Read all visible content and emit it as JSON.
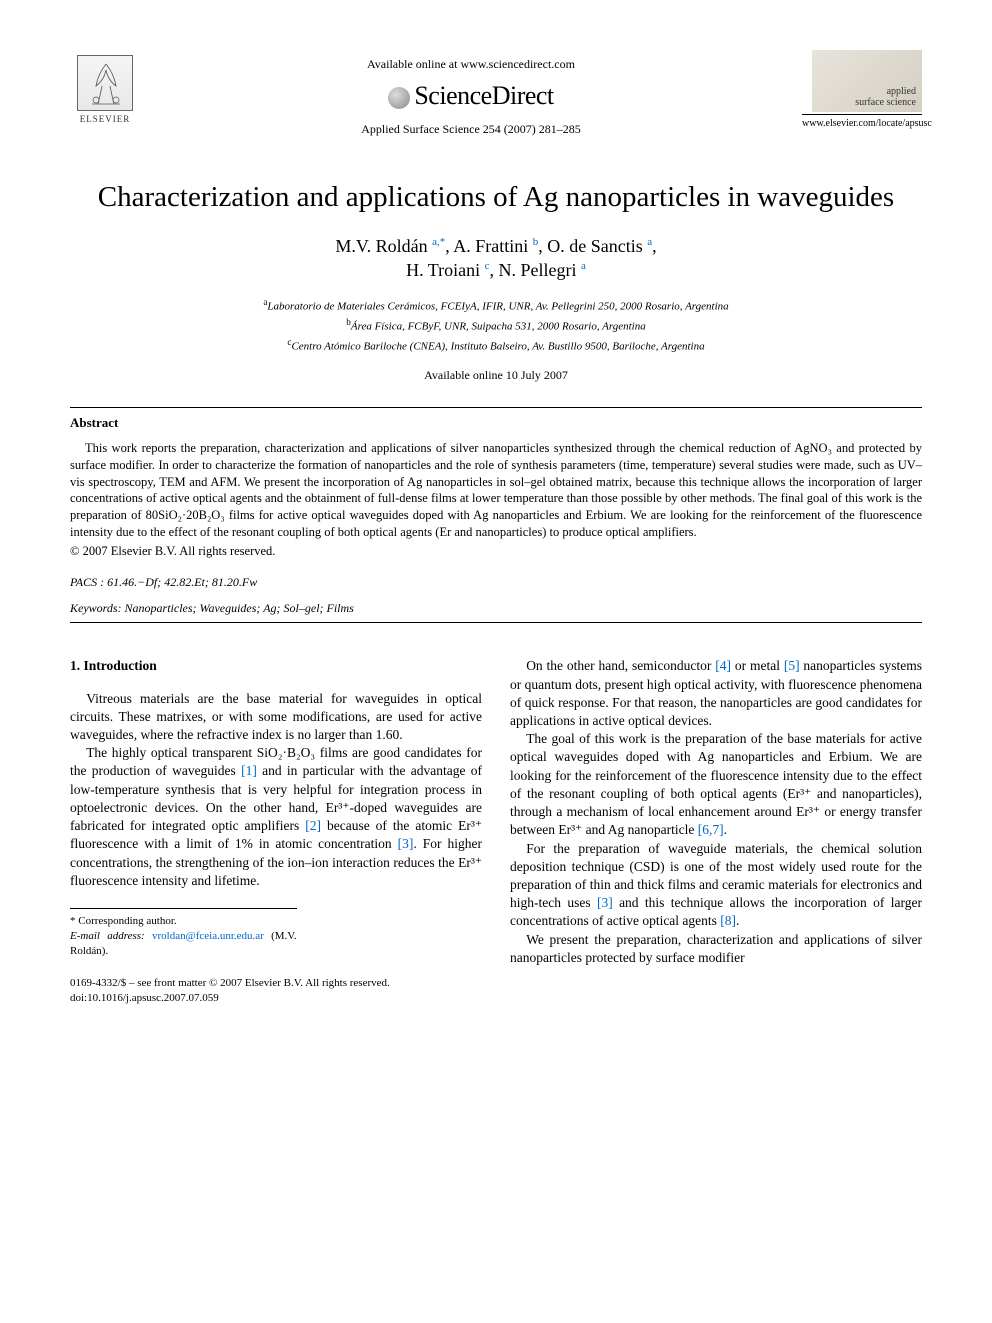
{
  "colors": {
    "text": "#000000",
    "link": "#0066cc",
    "background": "#ffffff",
    "rule": "#000000"
  },
  "typography": {
    "base_font": "Times New Roman",
    "title_fontsize_pt": 22,
    "author_fontsize_pt": 14,
    "body_fontsize_pt": 10,
    "abstract_fontsize_pt": 9
  },
  "header": {
    "publisher_logo_text": "ELSEVIER",
    "available_online": "Available online at www.sciencedirect.com",
    "sciencedirect": "ScienceDirect",
    "citation": "Applied Surface Science 254 (2007) 281–285",
    "journal_name_1": "applied",
    "journal_name_2": "surface science",
    "journal_url": "www.elsevier.com/locate/apsusc"
  },
  "title": "Characterization and applications of Ag nanoparticles in waveguides",
  "authors_html": "M.V. Roldán <sup><a>a,</a>*</sup>, A. Frattini <sup><a>b</a></sup>, O. de Sanctis <sup><a>a</a></sup>,<br>H. Troiani <sup><a>c</a></sup>, N. Pellegri <sup><a>a</a></sup>",
  "affiliations": {
    "a": "Laboratorio de Materiales Cerámicos, FCEIyA, IFIR, UNR, Av. Pellegrini 250, 2000 Rosario, Argentina",
    "b": "Área Física, FCByF, UNR, Suipacha 531, 2000 Rosario, Argentina",
    "c": "Centro Atómico Bariloche (CNEA), Instituto Balseiro, Av. Bustillo 9500, Bariloche, Argentina"
  },
  "available_date": "Available online 10 July 2007",
  "abstract": {
    "heading": "Abstract",
    "text": "This work reports the preparation, characterization and applications of silver nanoparticles synthesized through the chemical reduction of AgNO₃ and protected by surface modifier. In order to characterize the formation of nanoparticles and the role of synthesis parameters (time, temperature) several studies were made, such as UV–vis spectroscopy, TEM and AFM. We present the incorporation of Ag nanoparticles in sol–gel obtained matrix, because this technique allows the incorporation of larger concentrations of active optical agents and the obtainment of full-dense films at lower temperature than those possible by other methods. The final goal of this work is the preparation of 80SiO₂·20B₂O₃ films for active optical waveguides doped with Ag nanoparticles and Erbium. We are looking for the reinforcement of the fluorescence intensity due to the effect of the resonant coupling of both optical agents (Er and nanoparticles) to produce optical amplifiers.",
    "copyright": "© 2007 Elsevier B.V. All rights reserved."
  },
  "pacs": "PACS : 61.46.−Df; 42.82.Et; 81.20.Fw",
  "keywords": "Keywords: Nanoparticles; Waveguides; Ag; Sol–gel; Films",
  "section1": {
    "heading": "1.  Introduction",
    "p1": "Vitreous materials are the base material for waveguides in optical circuits. These matrixes, or with some modifications, are used for active waveguides, where the refractive index is no larger than 1.60.",
    "p2_html": "The highly optical transparent SiO₂·B₂O₃ films are good candidates for the production of waveguides <span class='ref-link'>[1]</span> and in particular with the advantage of low-temperature synthesis that is very helpful for integration process in optoelectronic devices. On the other hand, Er³⁺-doped waveguides are fabricated for integrated optic amplifiers <span class='ref-link'>[2]</span> because of the atomic Er³⁺ fluorescence with a limit of 1% in atomic concentration <span class='ref-link'>[3]</span>. For higher concentrations, the strengthening of the ion–ion interaction reduces the Er³⁺ fluorescence intensity and lifetime.",
    "p3_html": "On the other hand, semiconductor <span class='ref-link'>[4]</span> or metal <span class='ref-link'>[5]</span> nanoparticles systems or quantum dots, present high optical activity, with fluorescence phenomena of quick response. For that reason, the nanoparticles are good candidates for applications in active optical devices.",
    "p4_html": "The goal of this work is the preparation of the base materials for active optical waveguides doped with Ag nanoparticles and Erbium. We are looking for the reinforcement of the fluorescence intensity due to the effect of the resonant coupling of both optical agents (Er³⁺ and nanoparticles), through a mechanism of local enhancement around Er³⁺ or energy transfer between Er³⁺ and Ag nanoparticle <span class='ref-link'>[6,7]</span>.",
    "p5_html": "For the preparation of waveguide materials, the chemical solution deposition technique (CSD) is one of the most widely used route for the preparation of thin and thick films and ceramic materials for electronics and high-tech uses <span class='ref-link'>[3]</span> and this technique allows the incorporation of larger concentrations of active optical agents <span class='ref-link'>[8]</span>.",
    "p6": "We present the preparation, characterization and applications of silver nanoparticles protected by surface modifier"
  },
  "footnote": {
    "corresponding": "* Corresponding author.",
    "email_label": "E-mail address:",
    "email": "vroldan@fceia.unr.edu.ar",
    "email_attr": "(M.V. Roldán)."
  },
  "bottom": {
    "issn": "0169-4332/$ – see front matter © 2007 Elsevier B.V. All rights reserved.",
    "doi": "doi:10.1016/j.apsusc.2007.07.059"
  }
}
